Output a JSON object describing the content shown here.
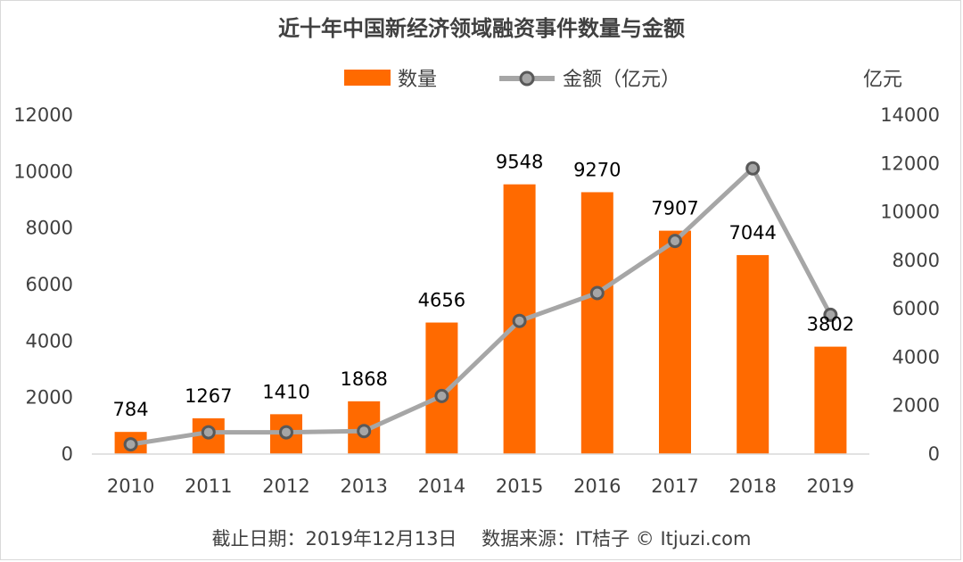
{
  "chart_data": {
    "type": "bar",
    "title": "近十年中国新经济领域融资事件数量与金额",
    "categories": [
      "2010",
      "2011",
      "2012",
      "2013",
      "2014",
      "2015",
      "2016",
      "2017",
      "2018",
      "2019"
    ],
    "series": [
      {
        "name": "数量",
        "type": "bar",
        "axis": "left",
        "color": "#ff6a00",
        "values": [
          784,
          1267,
          1410,
          1868,
          4656,
          9548,
          9270,
          7907,
          7044,
          3802
        ],
        "data_labels": [
          "784",
          "1267",
          "1410",
          "1868",
          "4656",
          "9548",
          "9270",
          "7907",
          "7044",
          "3802"
        ]
      },
      {
        "name": "金额（亿元）",
        "type": "line",
        "axis": "right",
        "color": "#a6a6a6",
        "values": [
          400,
          900,
          900,
          950,
          2400,
          5500,
          6650,
          8800,
          11800,
          5750
        ]
      }
    ],
    "y_left": {
      "min": 0,
      "max": 12000,
      "ticks": [
        "0",
        "2000",
        "4000",
        "6000",
        "8000",
        "10000",
        "12000"
      ]
    },
    "y_right": {
      "min": 0,
      "max": 14000,
      "unit_label": "亿元",
      "ticks": [
        "0",
        "2000",
        "4000",
        "6000",
        "8000",
        "10000",
        "12000",
        "14000"
      ]
    },
    "grid": false,
    "legend_position": "top"
  },
  "footer": "截止日期：2019年12月13日　 数据来源：IT桔子 © Itjuzi.com"
}
